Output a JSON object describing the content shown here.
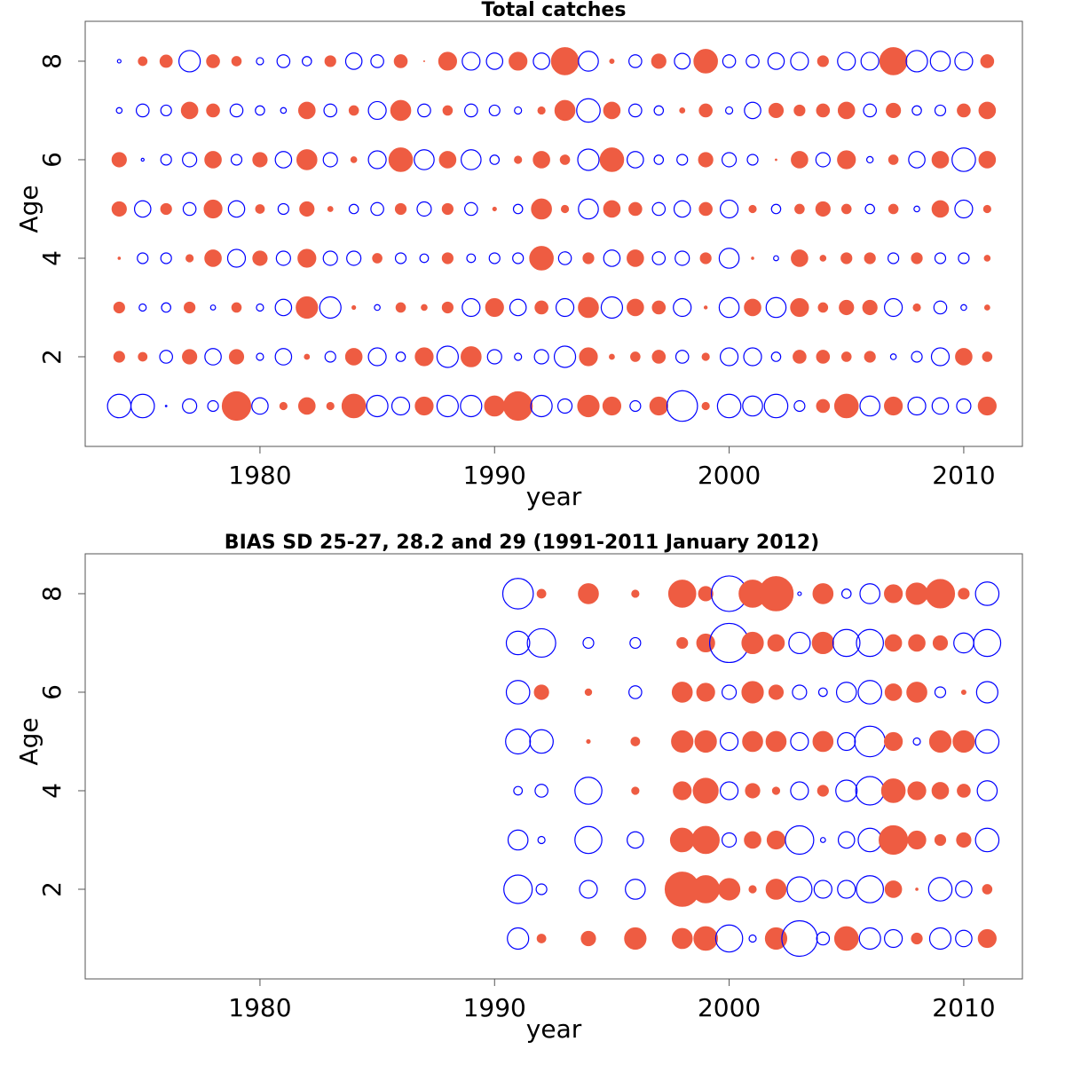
{
  "chart_data": [
    {
      "type": "bubble",
      "title": "Total catches",
      "xlabel": "year",
      "ylabel": "Age",
      "xlim": [
        1972.55,
        2012.5
      ],
      "xticks": [
        1980,
        1990,
        2000,
        2010
      ],
      "ylim": [
        0.18,
        8.81
      ],
      "yticks": [
        2,
        4,
        6,
        8
      ],
      "positive_color": "#ee5c42",
      "negative_color": "#0000ff",
      "years": [
        1974,
        1975,
        1976,
        1977,
        1978,
        1979,
        1980,
        1981,
        1982,
        1983,
        1984,
        1985,
        1986,
        1987,
        1988,
        1989,
        1990,
        1991,
        1992,
        1993,
        1994,
        1995,
        1996,
        1997,
        1998,
        1999,
        2000,
        2001,
        2002,
        2003,
        2004,
        2005,
        2006,
        2007,
        2008,
        2009,
        2010,
        2011
      ],
      "ages": [
        1,
        2,
        3,
        4,
        5,
        6,
        7,
        8
      ],
      "values": [
        [
          -3.3,
          -3.3,
          -0.2,
          -2,
          -1.5,
          4,
          -2.3,
          1,
          2.3,
          1,
          3.3,
          -3,
          -2.5,
          2.5,
          -3,
          -3,
          2.8,
          4,
          -3,
          -2,
          3,
          2.5,
          -1.5,
          2.5,
          -4.3,
          1,
          -3.3,
          -2.8,
          -3.3,
          -1.5,
          1.8,
          3.3,
          -2.8,
          2.5,
          -2.5,
          -2.3,
          -2,
          2.5
        ],
        [
          1.5,
          1.2,
          -1.8,
          2,
          -2.3,
          2,
          -1,
          -2.3,
          0.7,
          -1.5,
          2.3,
          -2.5,
          -1.3,
          2.5,
          -3,
          2.8,
          -2,
          -1,
          -2,
          -3,
          2.5,
          0.7,
          1.3,
          1.8,
          -1.8,
          1,
          -2.5,
          -2.5,
          -1.3,
          1.8,
          1.8,
          1.3,
          1.5,
          -0.8,
          -1.5,
          -2.5,
          2.3,
          1.3
        ],
        [
          1.5,
          -1,
          -1.3,
          1.5,
          -0.7,
          1.3,
          -1,
          -2.3,
          3,
          -3,
          0.5,
          -0.8,
          1.3,
          0.8,
          1.5,
          -2.5,
          2.5,
          -2.3,
          1.8,
          -2.5,
          2.8,
          -3,
          2.3,
          1.8,
          -2.5,
          0.4,
          -2.8,
          2.3,
          -2.8,
          2.5,
          1.3,
          2,
          2,
          -2.5,
          1,
          -1.8,
          -0.8,
          0.7
        ],
        [
          0.3,
          -1.5,
          -1.5,
          1,
          2.3,
          -2.5,
          2,
          -2,
          2.5,
          -2,
          -2,
          1.3,
          -1.5,
          -1.2,
          1.5,
          -1.2,
          -1.5,
          -1.5,
          3.3,
          -1.8,
          1.5,
          -2.3,
          2.3,
          -1.8,
          -2,
          1.5,
          -2.8,
          0.3,
          -0.7,
          2.3,
          0.8,
          1.5,
          1.5,
          -1.5,
          1.5,
          -1.5,
          -1.5,
          0.8
        ],
        [
          2,
          -2.3,
          1.5,
          -1.8,
          2.5,
          -2.3,
          1.2,
          -1.5,
          2,
          0.7,
          -1.3,
          -1.8,
          1.5,
          -2,
          1.5,
          -1.8,
          0.5,
          -1.3,
          2.8,
          1,
          -2.8,
          2.3,
          1.8,
          -1.8,
          -2.3,
          1.8,
          -2.5,
          1,
          -1.3,
          1.3,
          2,
          1.3,
          -1.3,
          1.3,
          -0.8,
          2.3,
          -2.5,
          1
        ],
        [
          2,
          -0.4,
          -1.5,
          -2,
          2.3,
          -1.5,
          2,
          -2.3,
          2.8,
          -2,
          0.8,
          -2.5,
          3.3,
          -2.8,
          2.3,
          -2.8,
          -1.3,
          1,
          2.3,
          1.3,
          -3,
          3.3,
          -2.3,
          -1.3,
          -1.5,
          2,
          -2,
          -1.5,
          0.2,
          2.3,
          -2,
          2.5,
          -0.9,
          1.3,
          -2.3,
          2.3,
          -3.3,
          2.3
        ],
        [
          -0.8,
          -1.8,
          -1.5,
          2.3,
          1.8,
          -1.8,
          -1.3,
          -0.8,
          2.3,
          -1.8,
          1.3,
          -2.5,
          2.8,
          -1.8,
          1.3,
          -1.8,
          -1.5,
          -1,
          1,
          2.8,
          -3.3,
          2.3,
          -1.8,
          -1.3,
          0.7,
          1.8,
          -1,
          -2.3,
          2,
          1.5,
          1.8,
          2.3,
          -1.8,
          2,
          -1.3,
          -1.5,
          1.8,
          2.3
        ],
        [
          -0.5,
          1.2,
          1.7,
          -3,
          1.8,
          1.3,
          -1,
          -1.8,
          -1.3,
          1.5,
          -2.3,
          -1.8,
          1.8,
          0.1,
          2.5,
          -2.5,
          -2.3,
          2.5,
          -2.3,
          3.8,
          -2.8,
          0.6,
          -1.8,
          2,
          -2.2,
          3.3,
          -1.8,
          -1.8,
          -2.3,
          -2.5,
          1.5,
          -2.5,
          -2.5,
          3.8,
          -3,
          -2.8,
          -2.5,
          1.8
        ]
      ]
    },
    {
      "type": "bubble",
      "title": "BIAS SD 25-27, 28.2 and 29 (1991-2011 January 2012)",
      "xlabel": "year",
      "ylabel": "Age",
      "xlim": [
        1972.55,
        2012.5
      ],
      "xticks": [
        1980,
        1990,
        2000,
        2010
      ],
      "ylim": [
        0.18,
        8.81
      ],
      "yticks": [
        2,
        4,
        6,
        8
      ],
      "positive_color": "#ee5c42",
      "negative_color": "#0000ff",
      "years": [
        1991,
        1992,
        1993,
        1994,
        1995,
        1996,
        1997,
        1998,
        1999,
        2000,
        2001,
        2002,
        2003,
        2004,
        2005,
        2006,
        2007,
        2008,
        2009,
        2010,
        2011
      ],
      "ages": [
        1,
        2,
        3,
        4,
        5,
        6,
        7,
        8
      ],
      "values": [
        [
          -3,
          1.2,
          null,
          2,
          null,
          3,
          null,
          2.8,
          3.3,
          -3.8,
          -1,
          3,
          -5,
          -1.8,
          3.3,
          -3,
          -2.5,
          1.5,
          -3,
          -2.3,
          2.5
        ],
        [
          -4,
          -1.5,
          null,
          -2.5,
          null,
          -2.8,
          null,
          4.8,
          3.8,
          3,
          1,
          2.8,
          -3.5,
          -2.5,
          -2.5,
          -3.8,
          2.3,
          0.3,
          -3.3,
          -2.3,
          1.3
        ],
        [
          -2.8,
          -1,
          null,
          -3.8,
          null,
          -2.3,
          null,
          3.3,
          3.8,
          -2,
          2.3,
          2.5,
          -4,
          -0.7,
          -2.3,
          -3.3,
          4,
          2.5,
          1.5,
          2,
          -3.3
        ],
        [
          -1.2,
          -1.8,
          null,
          -3.8,
          null,
          1,
          null,
          2.5,
          3.5,
          -2.5,
          2,
          1,
          -2.5,
          1.5,
          -3,
          -4,
          3.3,
          2.5,
          2.3,
          1.8,
          -2.8
        ],
        [
          -3.5,
          -3.3,
          null,
          0.5,
          null,
          1.2,
          null,
          3,
          3,
          -2.5,
          2.8,
          2.8,
          -2.5,
          2.8,
          -2.5,
          -4.3,
          2.5,
          -1,
          3,
          3,
          -3.3
        ],
        [
          -3.3,
          2,
          null,
          0.9,
          null,
          -1.8,
          null,
          2.8,
          2.5,
          -2,
          3,
          2,
          -2,
          -1.2,
          -2.8,
          -3.3,
          2.3,
          2.8,
          -1.5,
          0.6,
          -3
        ],
        [
          -3.3,
          -4,
          null,
          -1.5,
          null,
          -1.5,
          null,
          1.5,
          2.5,
          -5.5,
          3,
          2.3,
          -3,
          3,
          -3.8,
          -3.8,
          2.3,
          2.3,
          2,
          -2.8,
          -3.8
        ],
        [
          -4.3,
          1.2,
          null,
          2.8,
          null,
          1,
          null,
          3.8,
          2,
          -5,
          3.8,
          4.8,
          -0.5,
          2.8,
          -1.3,
          -2.8,
          2.5,
          3,
          4,
          1.5,
          -3.3
        ]
      ]
    }
  ]
}
